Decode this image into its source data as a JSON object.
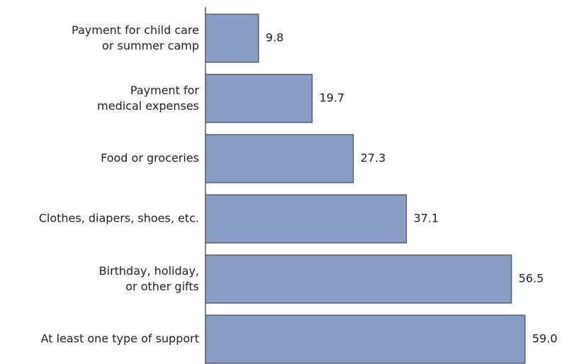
{
  "chart_data": {
    "type": "hbar",
    "categories": [
      "Payment for child care\nor summer camp",
      "Payment for\nmedical expenses",
      "Food or groceries",
      "Clothes, diapers, shoes, etc.",
      "Birthday, holiday,\nor other gifts",
      "At least one type of support"
    ],
    "values": [
      9.8,
      19.7,
      27.3,
      37.1,
      56.5,
      59.0
    ],
    "value_labels": [
      "9.8",
      "19.7",
      "27.3",
      "37.1",
      "56.5",
      "59.0"
    ],
    "color": "#8a9dc4"
  }
}
